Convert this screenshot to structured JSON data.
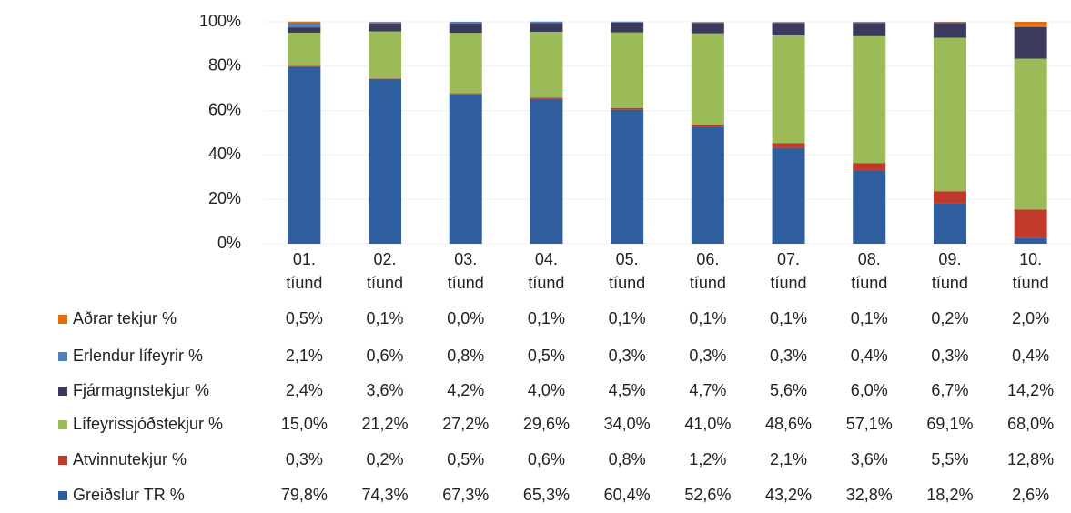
{
  "chart_data": {
    "type": "stacked-bar",
    "categories": [
      "01. tíund",
      "02. tíund",
      "03. tíund",
      "04. tíund",
      "05. tíund",
      "06. tíund",
      "07. tíund",
      "08. tíund",
      "09. tíund",
      "10. tíund"
    ],
    "ylim": [
      0,
      100
    ],
    "yticks": [
      {
        "value": 0,
        "label": "0%"
      },
      {
        "value": 20,
        "label": "20%"
      },
      {
        "value": 40,
        "label": "40%"
      },
      {
        "value": 60,
        "label": "60%"
      },
      {
        "value": 80,
        "label": "80%"
      },
      {
        "value": 100,
        "label": "100%"
      }
    ],
    "series": [
      {
        "name": "Aðrar tekjur %",
        "color": "#e46c0a",
        "values": [
          0.5,
          0.1,
          0.0,
          0.1,
          0.1,
          0.1,
          0.1,
          0.1,
          0.2,
          2.0
        ],
        "value_labels": [
          "0,5%",
          "0,1%",
          "0,0%",
          "0,1%",
          "0,1%",
          "0,1%",
          "0,1%",
          "0,1%",
          "0,2%",
          "2,0%"
        ]
      },
      {
        "name": "Erlendur lífeyrir %",
        "color": "#4f81bd",
        "values": [
          2.1,
          0.6,
          0.8,
          0.5,
          0.3,
          0.3,
          0.3,
          0.4,
          0.3,
          0.4
        ],
        "value_labels": [
          "2,1%",
          "0,6%",
          "0,8%",
          "0,5%",
          "0,3%",
          "0,3%",
          "0,3%",
          "0,4%",
          "0,3%",
          "0,4%"
        ]
      },
      {
        "name": "Fjármagnstekjur %",
        "color": "#3c3a5c",
        "values": [
          2.4,
          3.6,
          4.2,
          4.0,
          4.5,
          4.7,
          5.6,
          6.0,
          6.7,
          14.2
        ],
        "value_labels": [
          "2,4%",
          "3,6%",
          "4,2%",
          "4,0%",
          "4,5%",
          "4,7%",
          "5,6%",
          "6,0%",
          "6,7%",
          "14,2%"
        ]
      },
      {
        "name": "Lífeyrissjóðstekjur %",
        "color": "#9bbb59",
        "values": [
          15.0,
          21.2,
          27.2,
          29.6,
          34.0,
          41.0,
          48.6,
          57.1,
          69.1,
          68.0
        ],
        "value_labels": [
          "15,0%",
          "21,2%",
          "27,2%",
          "29,6%",
          "34,0%",
          "41,0%",
          "48,6%",
          "57,1%",
          "69,1%",
          "68,0%"
        ]
      },
      {
        "name": "Atvinnutekjur %",
        "color": "#c0392b",
        "values": [
          0.3,
          0.2,
          0.5,
          0.6,
          0.8,
          1.2,
          2.1,
          3.6,
          5.5,
          12.8
        ],
        "value_labels": [
          "0,3%",
          "0,2%",
          "0,5%",
          "0,6%",
          "0,8%",
          "1,2%",
          "2,1%",
          "3,6%",
          "5,5%",
          "12,8%"
        ]
      },
      {
        "name": "Greiðslur TR %",
        "color": "#2e5e9e",
        "values": [
          79.8,
          74.3,
          67.3,
          65.3,
          60.4,
          52.6,
          43.2,
          32.8,
          18.2,
          2.6
        ],
        "value_labels": [
          "79,8%",
          "74,3%",
          "67,3%",
          "65,3%",
          "60,4%",
          "52,6%",
          "43,2%",
          "32,8%",
          "18,2%",
          "2,6%"
        ]
      }
    ]
  }
}
